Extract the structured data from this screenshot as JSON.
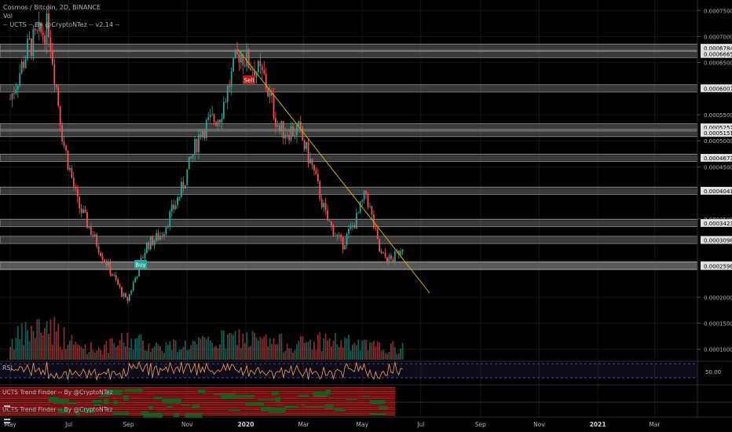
{
  "header": {
    "symbol_line": "Cosmos / Bitcoin, 2D, BINANCE",
    "vol_label": "Vol",
    "indicator_label": "-- UCTS -- By @CryptoNTez -- v2.14 --"
  },
  "panes": {
    "rsi_label": "RSI",
    "rsi_value": "50.00",
    "trend_label_1": "UCTS Trend Finder -- By @CryptoNTez",
    "trend_label_2": "UCTS Trend Finder -- By @CryptoNTez"
  },
  "signals": {
    "buy": {
      "label": "Buy",
      "color": "#26a69a"
    },
    "sell": {
      "label": "Sell",
      "color": "#b71c1c"
    }
  },
  "colors": {
    "up": "#26a69a",
    "down": "#ef5350",
    "trendline": "#c8b400",
    "rsi": "#f0a060",
    "rsi_band": "#7e57c2",
    "level_band": "#808080"
  },
  "chart_data": {
    "type": "candlestick",
    "title": "Cosmos / Bitcoin, 2D, BINANCE",
    "y_axis": {
      "ticks": [
        "0.00075000",
        "0.00070000",
        "0.00065000",
        "0.00055000",
        "0.00050000",
        "0.00045000",
        "0.00035000",
        "0.00020000",
        "0.00015000",
        "0.00010000"
      ],
      "ylim": [
        8e-05,
        0.00077
      ]
    },
    "x_axis": {
      "ticks": [
        "May",
        "Jul",
        "Sep",
        "Nov",
        "2020",
        "Mar",
        "May",
        "Jul",
        "Sep",
        "Nov",
        "2021",
        "Mar"
      ],
      "bold": [
        "2020",
        "2021"
      ]
    },
    "levels": [
      "0.00067840",
      "0.00066650",
      "0.00060070",
      "0.00052570",
      "0.00051510",
      "0.00046730",
      "0.00040410",
      "0.00034230",
      "0.00030980",
      "0.00026110",
      "0.00025980"
    ],
    "price_path": [
      [
        "2019-05-01",
        0.00058
      ],
      [
        "2019-05-20",
        0.00068
      ],
      [
        "2019-06-10",
        0.00072
      ],
      [
        "2019-06-25",
        0.0005
      ],
      [
        "2019-07-10",
        0.00038
      ],
      [
        "2019-08-05",
        0.00028
      ],
      [
        "2019-08-30",
        0.00019
      ],
      [
        "2019-09-20",
        0.0003
      ],
      [
        "2019-10-05",
        0.00032
      ],
      [
        "2019-10-25",
        0.0004
      ],
      [
        "2019-11-15",
        0.00052
      ],
      [
        "2019-12-05",
        0.00055
      ],
      [
        "2019-12-25",
        0.00067
      ],
      [
        "2020-01-20",
        0.00062
      ],
      [
        "2020-02-05",
        0.00052
      ],
      [
        "2020-02-25",
        0.00052
      ],
      [
        "2020-03-10",
        0.00045
      ],
      [
        "2020-03-25",
        0.00035
      ],
      [
        "2020-04-10",
        0.0003
      ],
      [
        "2020-04-25",
        0.00035
      ],
      [
        "2020-05-05",
        0.0004
      ],
      [
        "2020-05-20",
        0.00028
      ],
      [
        "2020-06-01",
        0.00027
      ],
      [
        "2020-06-12",
        0.0003
      ]
    ],
    "volume_path": [
      [
        "2019-05-01",
        0.4
      ],
      [
        "2019-05-20",
        0.6
      ],
      [
        "2019-06-10",
        0.8
      ],
      [
        "2019-06-25",
        0.5
      ],
      [
        "2019-07-10",
        0.3
      ],
      [
        "2019-08-05",
        0.25
      ],
      [
        "2019-09-01",
        0.45
      ],
      [
        "2019-10-01",
        0.3
      ],
      [
        "2019-11-15",
        0.35
      ],
      [
        "2019-12-25",
        0.5
      ],
      [
        "2020-01-20",
        0.4
      ],
      [
        "2020-02-25",
        0.35
      ],
      [
        "2020-03-25",
        0.45
      ],
      [
        "2020-05-05",
        0.3
      ],
      [
        "2020-06-12",
        0.25
      ]
    ]
  }
}
